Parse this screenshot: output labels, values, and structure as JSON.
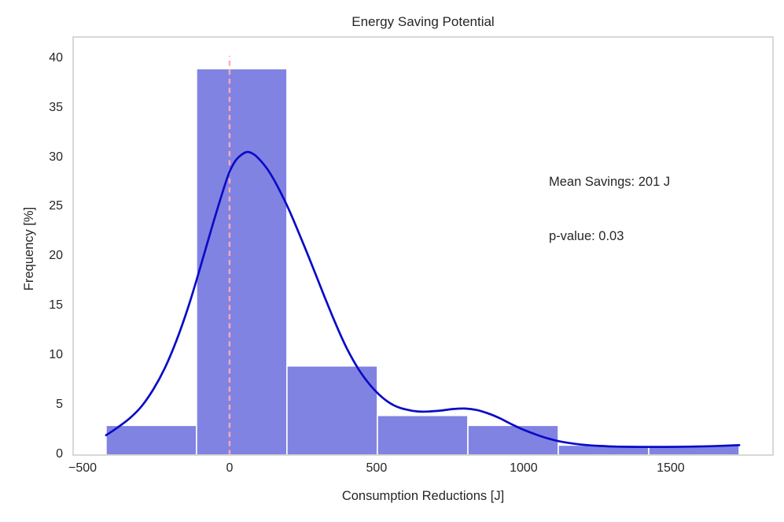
{
  "chart_data": {
    "type": "histogram+kde",
    "title": "Energy Saving Potential",
    "xlabel": "Consumption Reductions [J]",
    "ylabel": "Frequency [%]",
    "xlim": [
      -532,
      1848
    ],
    "ylim": [
      0,
      42.2
    ],
    "grid": false,
    "legend": "none",
    "xticks": [
      {
        "label": "−500",
        "value": -500
      },
      {
        "label": "0",
        "value": 0
      },
      {
        "label": "500",
        "value": 500
      },
      {
        "label": "1000",
        "value": 1000
      },
      {
        "label": "1500",
        "value": 1500
      }
    ],
    "yticks": [
      {
        "label": "0",
        "value": 0
      },
      {
        "label": "5",
        "value": 5
      },
      {
        "label": "10",
        "value": 10
      },
      {
        "label": "15",
        "value": 15
      },
      {
        "label": "20",
        "value": 20
      },
      {
        "label": "25",
        "value": 25
      },
      {
        "label": "30",
        "value": 30
      },
      {
        "label": "35",
        "value": 35
      },
      {
        "label": "40",
        "value": 40
      }
    ],
    "histogram": {
      "bin_edges": [
        -420,
        -112.4,
        195.1,
        502.7,
        810.3,
        1117.9,
        1425.4,
        1733
      ],
      "frequencies_pct": [
        3,
        39,
        9,
        4,
        3,
        1,
        1
      ]
    },
    "kde_curve": [
      [
        -420,
        2.0
      ],
      [
        -380,
        2.8
      ],
      [
        -340,
        3.7
      ],
      [
        -300,
        4.9
      ],
      [
        -260,
        6.6
      ],
      [
        -220,
        8.8
      ],
      [
        -180,
        11.6
      ],
      [
        -140,
        15.0
      ],
      [
        -100,
        18.9
      ],
      [
        -60,
        23.0
      ],
      [
        -20,
        26.9
      ],
      [
        0,
        28.6
      ],
      [
        20,
        29.7
      ],
      [
        40,
        30.3
      ],
      [
        60,
        30.6
      ],
      [
        80,
        30.4
      ],
      [
        100,
        29.9
      ],
      [
        130,
        28.8
      ],
      [
        160,
        27.3
      ],
      [
        200,
        24.9
      ],
      [
        240,
        22.1
      ],
      [
        280,
        19.2
      ],
      [
        320,
        16.2
      ],
      [
        360,
        13.3
      ],
      [
        400,
        10.7
      ],
      [
        440,
        8.6
      ],
      [
        480,
        7.0
      ],
      [
        520,
        5.8
      ],
      [
        560,
        5.0
      ],
      [
        600,
        4.6
      ],
      [
        640,
        4.4
      ],
      [
        680,
        4.4
      ],
      [
        720,
        4.5
      ],
      [
        760,
        4.65
      ],
      [
        800,
        4.7
      ],
      [
        840,
        4.55
      ],
      [
        880,
        4.2
      ],
      [
        920,
        3.7
      ],
      [
        960,
        3.1
      ],
      [
        1000,
        2.55
      ],
      [
        1040,
        2.1
      ],
      [
        1080,
        1.7
      ],
      [
        1120,
        1.4
      ],
      [
        1160,
        1.2
      ],
      [
        1200,
        1.05
      ],
      [
        1260,
        0.92
      ],
      [
        1320,
        0.85
      ],
      [
        1400,
        0.82
      ],
      [
        1480,
        0.82
      ],
      [
        1560,
        0.85
      ],
      [
        1640,
        0.9
      ],
      [
        1733,
        1.0
      ]
    ],
    "reference_vline": {
      "x": 0,
      "y_bottom": 0,
      "y_top": 40.3,
      "style": "dashed"
    },
    "annotation": {
      "lines": [
        "Mean Savings: 201 J",
        "p-value: 0.03"
      ]
    },
    "colors": {
      "bar_fill": "#8183e2",
      "bar_edge": "#ffffff",
      "kde_line": "#0b0bc7",
      "vline": "#ffaab2",
      "spine": "#d4d4d4",
      "text": "#262626",
      "background": "#ffffff"
    }
  }
}
